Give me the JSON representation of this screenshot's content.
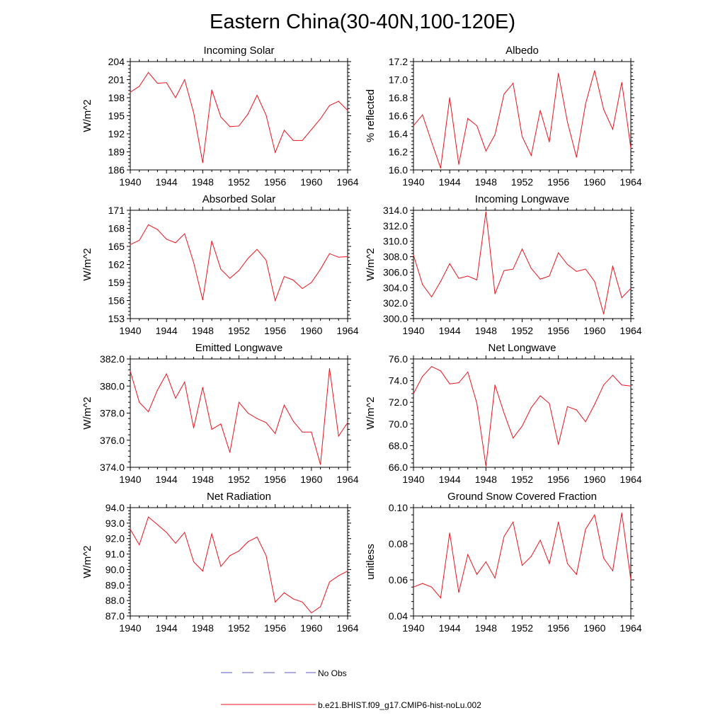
{
  "figure_title": "Eastern China(30-40N,100-120E)",
  "legend": {
    "items": [
      {
        "label": "No Obs",
        "color": "#5a5ac8",
        "dash": true
      },
      {
        "label": "b.e21.BHIST.f09_g17.CMIP6-hist-noLu.002",
        "color": "#e8141e",
        "dash": false
      }
    ]
  },
  "colors": {
    "series": "#e8141e",
    "axis": "#000000"
  },
  "chart_data": [
    {
      "type": "line",
      "title": "Incoming Solar",
      "xlabel": "",
      "ylabel": "W/m^2",
      "xlim": [
        1940,
        1964
      ],
      "ylim": [
        186,
        204
      ],
      "yticks": [
        186,
        189,
        192,
        195,
        198,
        201,
        204
      ],
      "ytick_labels": [
        "186",
        "189",
        "192",
        "195",
        "198",
        "201",
        "204"
      ],
      "xticks": [
        1940,
        1944,
        1948,
        1952,
        1956,
        1960,
        1964
      ],
      "xtick_labels": [
        "1940",
        "1944",
        "1948",
        "1952",
        "1956",
        "1960",
        "1964"
      ],
      "x": [
        1940,
        1941,
        1942,
        1943,
        1944,
        1945,
        1946,
        1947,
        1948,
        1949,
        1950,
        1951,
        1952,
        1953,
        1954,
        1955,
        1956,
        1957,
        1958,
        1959,
        1960,
        1961,
        1962,
        1963,
        1964
      ],
      "series": [
        {
          "values": [
            198.9,
            199.9,
            202.2,
            200.4,
            200.5,
            198.0,
            201.0,
            195.5,
            187.2,
            199.3,
            194.8,
            193.2,
            193.3,
            195.3,
            198.4,
            195.1,
            188.9,
            192.6,
            190.9,
            190.9,
            192.7,
            194.5,
            196.7,
            197.4,
            195.9
          ]
        }
      ]
    },
    {
      "type": "line",
      "title": "Albedo",
      "xlabel": "",
      "ylabel": "% reflected",
      "xlim": [
        1940,
        1964
      ],
      "ylim": [
        16.0,
        17.2
      ],
      "yticks": [
        16.0,
        16.2,
        16.4,
        16.6,
        16.8,
        17.0,
        17.2
      ],
      "ytick_labels": [
        "16.0",
        "16.2",
        "16.4",
        "16.6",
        "16.8",
        "17.0",
        "17.2"
      ],
      "xticks": [
        1940,
        1944,
        1948,
        1952,
        1956,
        1960,
        1964
      ],
      "xtick_labels": [
        "1940",
        "1944",
        "1948",
        "1952",
        "1956",
        "1960",
        "1964"
      ],
      "x": [
        1940,
        1941,
        1942,
        1943,
        1944,
        1945,
        1946,
        1947,
        1948,
        1949,
        1950,
        1951,
        1952,
        1953,
        1954,
        1955,
        1956,
        1957,
        1958,
        1959,
        1960,
        1961,
        1962,
        1963,
        1964
      ],
      "series": [
        {
          "values": [
            16.49,
            16.61,
            16.31,
            16.02,
            16.8,
            16.06,
            16.57,
            16.49,
            16.21,
            16.39,
            16.84,
            16.96,
            16.37,
            16.16,
            16.66,
            16.31,
            17.07,
            16.53,
            16.14,
            16.73,
            17.1,
            16.67,
            16.45,
            16.97,
            16.24
          ]
        }
      ]
    },
    {
      "type": "line",
      "title": "Absorbed Solar",
      "xlabel": "",
      "ylabel": "W/m^2",
      "xlim": [
        1940,
        1964
      ],
      "ylim": [
        153,
        171
      ],
      "yticks": [
        153,
        156,
        159,
        162,
        165,
        168,
        171
      ],
      "ytick_labels": [
        "153",
        "156",
        "159",
        "162",
        "165",
        "168",
        "171"
      ],
      "xticks": [
        1940,
        1944,
        1948,
        1952,
        1956,
        1960,
        1964
      ],
      "xtick_labels": [
        "1940",
        "1944",
        "1948",
        "1952",
        "1956",
        "1960",
        "1964"
      ],
      "x": [
        1940,
        1941,
        1942,
        1943,
        1944,
        1945,
        1946,
        1947,
        1948,
        1949,
        1950,
        1951,
        1952,
        1953,
        1954,
        1955,
        1956,
        1957,
        1958,
        1959,
        1960,
        1961,
        1962,
        1963,
        1964
      ],
      "series": [
        {
          "values": [
            165.3,
            166.0,
            168.6,
            167.8,
            166.2,
            165.6,
            167.1,
            162.3,
            156.1,
            165.9,
            161.2,
            159.7,
            161.0,
            163.0,
            164.5,
            162.7,
            156.0,
            160.0,
            159.4,
            158.0,
            159.0,
            161.2,
            163.8,
            163.2,
            163.3
          ]
        }
      ]
    },
    {
      "type": "line",
      "title": "Incoming Longwave",
      "xlabel": "",
      "ylabel": "W/m^2",
      "xlim": [
        1940,
        1964
      ],
      "ylim": [
        300.0,
        314.0
      ],
      "yticks": [
        300,
        302,
        304,
        306,
        308,
        310,
        312,
        314
      ],
      "ytick_labels": [
        "300.0",
        "302.0",
        "304.0",
        "306.0",
        "308.0",
        "310.0",
        "312.0",
        "314.0"
      ],
      "xticks": [
        1940,
        1944,
        1948,
        1952,
        1956,
        1960,
        1964
      ],
      "xtick_labels": [
        "1940",
        "1944",
        "1948",
        "1952",
        "1956",
        "1960",
        "1964"
      ],
      "x": [
        1940,
        1941,
        1942,
        1943,
        1944,
        1945,
        1946,
        1947,
        1948,
        1949,
        1950,
        1951,
        1952,
        1953,
        1954,
        1955,
        1956,
        1957,
        1958,
        1959,
        1960,
        1961,
        1962,
        1963,
        1964
      ],
      "series": [
        {
          "values": [
            308.2,
            304.4,
            302.8,
            304.8,
            307.1,
            305.2,
            305.5,
            305.0,
            313.8,
            303.2,
            306.2,
            306.4,
            309.0,
            306.5,
            305.1,
            305.5,
            308.5,
            307.0,
            306.1,
            306.4,
            304.8,
            300.6,
            306.8,
            302.7,
            303.9
          ]
        }
      ]
    },
    {
      "type": "line",
      "title": "Emitted Longwave",
      "xlabel": "",
      "ylabel": "W/m^2",
      "xlim": [
        1940,
        1964
      ],
      "ylim": [
        374.0,
        382.0
      ],
      "yticks": [
        374,
        376,
        378,
        380,
        382
      ],
      "ytick_labels": [
        "374.0",
        "376.0",
        "378.0",
        "380.0",
        "382.0"
      ],
      "xticks": [
        1940,
        1944,
        1948,
        1952,
        1956,
        1960,
        1964
      ],
      "xtick_labels": [
        "1940",
        "1944",
        "1948",
        "1952",
        "1956",
        "1960",
        "1964"
      ],
      "x": [
        1940,
        1941,
        1942,
        1943,
        1944,
        1945,
        1946,
        1947,
        1948,
        1949,
        1950,
        1951,
        1952,
        1953,
        1954,
        1955,
        1956,
        1957,
        1958,
        1959,
        1960,
        1961,
        1962,
        1963,
        1964
      ],
      "series": [
        {
          "values": [
            381.1,
            378.8,
            378.1,
            379.7,
            380.9,
            379.1,
            380.3,
            376.9,
            379.9,
            376.8,
            377.2,
            375.1,
            378.8,
            378.0,
            377.6,
            377.3,
            376.5,
            378.6,
            377.4,
            376.6,
            376.6,
            374.2,
            381.3,
            376.3,
            377.3
          ]
        }
      ]
    },
    {
      "type": "line",
      "title": "Net Longwave",
      "xlabel": "",
      "ylabel": "W/m^2",
      "xlim": [
        1940,
        1964
      ],
      "ylim": [
        66.0,
        76.0
      ],
      "yticks": [
        66,
        68,
        70,
        72,
        74,
        76
      ],
      "ytick_labels": [
        "66.0",
        "68.0",
        "70.0",
        "72.0",
        "74.0",
        "76.0"
      ],
      "xticks": [
        1940,
        1944,
        1948,
        1952,
        1956,
        1960,
        1964
      ],
      "xtick_labels": [
        "1940",
        "1944",
        "1948",
        "1952",
        "1956",
        "1960",
        "1964"
      ],
      "x": [
        1940,
        1941,
        1942,
        1943,
        1944,
        1945,
        1946,
        1947,
        1948,
        1949,
        1950,
        1951,
        1952,
        1953,
        1954,
        1955,
        1956,
        1957,
        1958,
        1959,
        1960,
        1961,
        1962,
        1963,
        1964
      ],
      "series": [
        {
          "values": [
            72.8,
            74.4,
            75.3,
            74.9,
            73.7,
            73.8,
            74.8,
            71.9,
            66.1,
            73.6,
            71.0,
            68.7,
            69.8,
            71.5,
            72.6,
            71.9,
            68.1,
            71.6,
            71.3,
            70.2,
            71.8,
            73.6,
            74.5,
            73.6,
            73.5
          ]
        }
      ]
    },
    {
      "type": "line",
      "title": "Net Radiation",
      "xlabel": "",
      "ylabel": "W/m^2",
      "xlim": [
        1940,
        1964
      ],
      "ylim": [
        87.0,
        94.0
      ],
      "yticks": [
        87,
        88,
        89,
        90,
        91,
        92,
        93,
        94
      ],
      "ytick_labels": [
        "87.0",
        "88.0",
        "89.0",
        "90.0",
        "91.0",
        "92.0",
        "93.0",
        "94.0"
      ],
      "xticks": [
        1940,
        1944,
        1948,
        1952,
        1956,
        1960,
        1964
      ],
      "xtick_labels": [
        "1940",
        "1944",
        "1948",
        "1952",
        "1956",
        "1960",
        "1964"
      ],
      "x": [
        1940,
        1941,
        1942,
        1943,
        1944,
        1945,
        1946,
        1947,
        1948,
        1949,
        1950,
        1951,
        1952,
        1953,
        1954,
        1955,
        1956,
        1957,
        1958,
        1959,
        1960,
        1961,
        1962,
        1963,
        1964
      ],
      "series": [
        {
          "values": [
            92.6,
            91.6,
            93.4,
            92.9,
            92.4,
            91.7,
            92.4,
            90.5,
            89.9,
            92.3,
            90.2,
            90.9,
            91.2,
            91.8,
            92.1,
            90.9,
            87.9,
            88.5,
            88.1,
            87.9,
            87.2,
            87.6,
            89.2,
            89.6,
            89.9
          ]
        }
      ]
    },
    {
      "type": "line",
      "title": "Ground Snow Covered Fraction",
      "xlabel": "",
      "ylabel": "unitless",
      "xlim": [
        1940,
        1964
      ],
      "ylim": [
        0.04,
        0.1
      ],
      "yticks": [
        0.04,
        0.06,
        0.08,
        0.1
      ],
      "ytick_labels": [
        "0.04",
        "0.06",
        "0.08",
        "0.10"
      ],
      "xticks": [
        1940,
        1944,
        1948,
        1952,
        1956,
        1960,
        1964
      ],
      "xtick_labels": [
        "1940",
        "1944",
        "1948",
        "1952",
        "1956",
        "1960",
        "1964"
      ],
      "x": [
        1940,
        1941,
        1942,
        1943,
        1944,
        1945,
        1946,
        1947,
        1948,
        1949,
        1950,
        1951,
        1952,
        1953,
        1954,
        1955,
        1956,
        1957,
        1958,
        1959,
        1960,
        1961,
        1962,
        1963,
        1964
      ],
      "series": [
        {
          "values": [
            0.056,
            0.058,
            0.056,
            0.05,
            0.086,
            0.053,
            0.074,
            0.063,
            0.07,
            0.061,
            0.084,
            0.092,
            0.068,
            0.073,
            0.082,
            0.069,
            0.092,
            0.069,
            0.063,
            0.088,
            0.096,
            0.072,
            0.065,
            0.097,
            0.06
          ]
        }
      ]
    }
  ]
}
